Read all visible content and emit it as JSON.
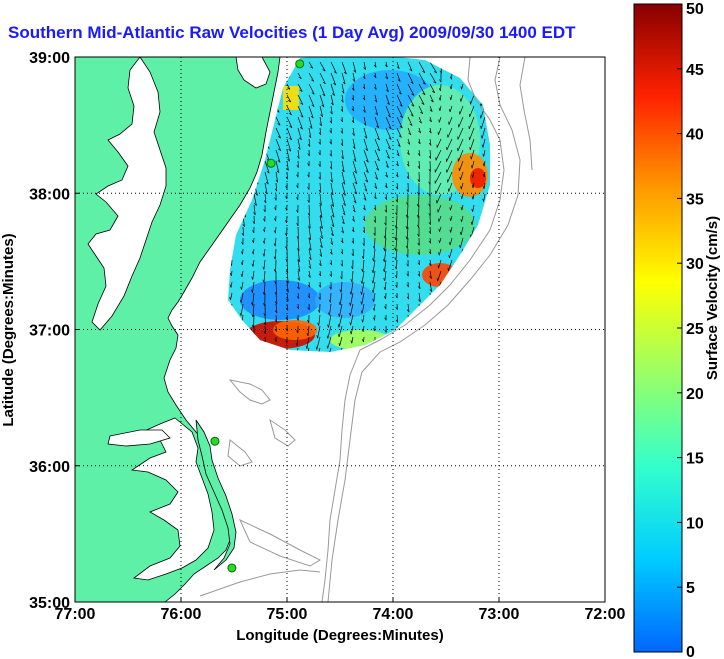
{
  "title": "Southern Mid-Atlantic Raw Velocities (1 Day Avg) 2009/09/30 1400 EDT",
  "map": {
    "xlabel": "Longitude (Degrees:Minutes)",
    "ylabel": "Latitude (Degrees:Minutes)",
    "x_ticks": [
      {
        "value": -77,
        "label": "77:00"
      },
      {
        "value": -76,
        "label": "76:00"
      },
      {
        "value": -75,
        "label": "75:00"
      },
      {
        "value": -74,
        "label": "74:00"
      },
      {
        "value": -73,
        "label": "73:00"
      },
      {
        "value": -72,
        "label": "72:00"
      }
    ],
    "y_ticks": [
      {
        "value": 35,
        "label": "35:00"
      },
      {
        "value": 36,
        "label": "36:00"
      },
      {
        "value": 37,
        "label": "37:00"
      },
      {
        "value": 38,
        "label": "38:00"
      },
      {
        "value": 39,
        "label": "39:00"
      }
    ],
    "xlim": [
      -77,
      -72
    ],
    "ylim": [
      35,
      39
    ],
    "grid": "dotted",
    "land_color": "#5ff0a8",
    "water_color": "#ffffff",
    "bathymetry_color": "#999999",
    "coastline_color": "#000000",
    "stations": [
      {
        "lon": -74.88,
        "lat": 38.95
      },
      {
        "lon": -75.15,
        "lat": 38.22
      },
      {
        "lon": -75.68,
        "lat": 36.18
      },
      {
        "lon": -75.52,
        "lat": 35.25
      }
    ],
    "station_color": "#22dd22"
  },
  "colorbar": {
    "label": "Surface Velocity (cm/s)",
    "min": 0,
    "max": 50,
    "ticks": [
      {
        "value": 0,
        "label": "0"
      },
      {
        "value": 5,
        "label": "5"
      },
      {
        "value": 10,
        "label": "10"
      },
      {
        "value": 15,
        "label": "15"
      },
      {
        "value": 20,
        "label": "20"
      },
      {
        "value": 25,
        "label": "25"
      },
      {
        "value": 30,
        "label": "30"
      },
      {
        "value": 35,
        "label": "35"
      },
      {
        "value": 40,
        "label": "40"
      },
      {
        "value": 45,
        "label": "45"
      },
      {
        "value": 50,
        "label": "50"
      }
    ],
    "colors": [
      "#0066ff",
      "#00ccff",
      "#33ffcc",
      "#99ff66",
      "#ffff00",
      "#ff9900",
      "#ff2200",
      "#880000"
    ]
  }
}
